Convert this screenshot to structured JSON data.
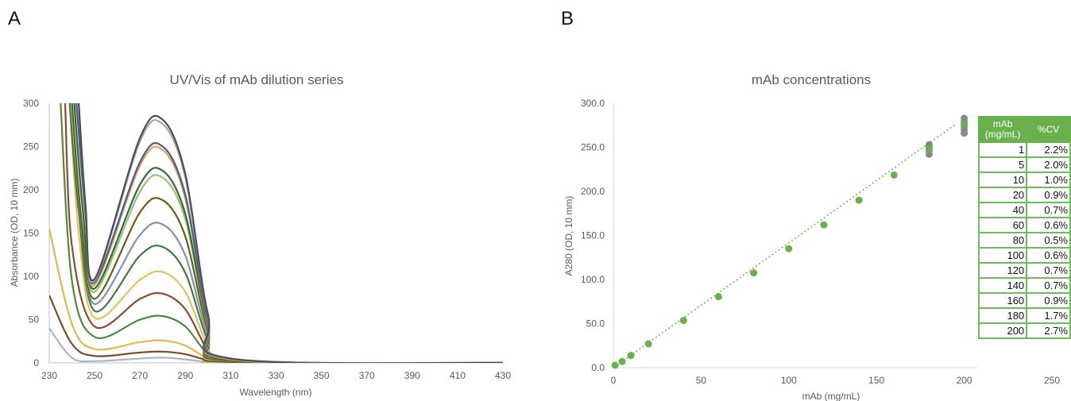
{
  "panels": {
    "a": "A",
    "b": "B"
  },
  "chart_data": [
    {
      "type": "line",
      "title": "UV/Vis of mAb dilution series",
      "xlabel": "Wavelength (nm)",
      "ylabel": "Absorbance (OD, 10 mm)",
      "xlim": [
        230,
        430
      ],
      "ylim": [
        0,
        300
      ],
      "xticks": [
        230,
        250,
        270,
        290,
        310,
        330,
        350,
        370,
        390,
        410,
        430
      ],
      "yticks": [
        0,
        50,
        100,
        150,
        200,
        250,
        300
      ],
      "grid": false,
      "legend": "none",
      "series": [
        {
          "color": "#a9b7c4",
          "points": [
            [
              230,
              40
            ],
            [
              240,
              6
            ],
            [
              250,
              2
            ],
            [
              270,
              5
            ],
            [
              280,
              6
            ],
            [
              290,
              4
            ],
            [
              300,
              1
            ],
            [
              310,
              0
            ],
            [
              430,
              0
            ]
          ]
        },
        {
          "color": "#7a4a2a",
          "points": [
            [
              230,
              78
            ],
            [
              240,
              22
            ],
            [
              250,
              8
            ],
            [
              270,
              12
            ],
            [
              280,
              13
            ],
            [
              290,
              10
            ],
            [
              300,
              3
            ],
            [
              310,
              0
            ],
            [
              430,
              0
            ]
          ]
        },
        {
          "color": "#e0b84a",
          "points": [
            [
              230,
              155
            ],
            [
              240,
              45
            ],
            [
              250,
              16
            ],
            [
              270,
              24
            ],
            [
              280,
              26
            ],
            [
              290,
              20
            ],
            [
              300,
              5
            ],
            [
              310,
              0
            ],
            [
              430,
              0
            ]
          ]
        },
        {
          "color": "#4c8a3c",
          "points": [
            [
              235,
              300
            ],
            [
              240,
              95
            ],
            [
              250,
              30
            ],
            [
              270,
              50
            ],
            [
              280,
              54
            ],
            [
              290,
              42
            ],
            [
              300,
              10
            ],
            [
              310,
              1
            ],
            [
              430,
              0
            ]
          ]
        },
        {
          "color": "#8c4a30",
          "points": [
            [
              237,
              300
            ],
            [
              240,
              135
            ],
            [
              250,
              42
            ],
            [
              270,
              74
            ],
            [
              280,
              80
            ],
            [
              290,
              62
            ],
            [
              300,
              15
            ],
            [
              310,
              1
            ],
            [
              430,
              0
            ]
          ]
        },
        {
          "color": "#e0c060",
          "points": [
            [
              239,
              300
            ],
            [
              243,
              150
            ],
            [
              250,
              52
            ],
            [
              270,
              96
            ],
            [
              280,
              105
            ],
            [
              290,
              82
            ],
            [
              300,
              20
            ],
            [
              310,
              2
            ],
            [
              430,
              0
            ]
          ]
        },
        {
          "color": "#3f7a40",
          "points": [
            [
              239,
              300
            ],
            [
              243,
              175
            ],
            [
              250,
              60
            ],
            [
              270,
              124
            ],
            [
              280,
              134
            ],
            [
              290,
              104
            ],
            [
              300,
              26
            ],
            [
              310,
              2
            ],
            [
              430,
              0
            ]
          ]
        },
        {
          "color": "#8090b0",
          "points": [
            [
              240,
              300
            ],
            [
              244,
              165
            ],
            [
              250,
              68
            ],
            [
              270,
              148
            ],
            [
              280,
              160
            ],
            [
              290,
              124
            ],
            [
              300,
              31
            ],
            [
              310,
              3
            ],
            [
              430,
              0
            ]
          ]
        },
        {
          "color": "#6a5a1a",
          "points": [
            [
              240,
              300
            ],
            [
              244,
              170
            ],
            [
              250,
              74
            ],
            [
              270,
              174
            ],
            [
              280,
              188
            ],
            [
              290,
              146
            ],
            [
              300,
              37
            ],
            [
              310,
              3
            ],
            [
              430,
              0
            ]
          ]
        },
        {
          "color": "#98c070",
          "points": [
            [
              241,
              300
            ],
            [
              245,
              170
            ],
            [
              250,
              82
            ],
            [
              270,
              198
            ],
            [
              280,
              214
            ],
            [
              290,
              166
            ],
            [
              300,
              42
            ],
            [
              310,
              4
            ],
            [
              430,
              0
            ]
          ]
        },
        {
          "color": "#2f6a3a",
          "points": [
            [
              241,
              300
            ],
            [
              245,
              172
            ],
            [
              250,
              86
            ],
            [
              270,
              206
            ],
            [
              280,
              222
            ],
            [
              290,
              172
            ],
            [
              300,
              44
            ],
            [
              310,
              4
            ],
            [
              430,
              0
            ]
          ]
        },
        {
          "color": "#e0a050",
          "points": [
            [
              242,
              300
            ],
            [
              246,
              170
            ],
            [
              250,
              90
            ],
            [
              270,
              228
            ],
            [
              280,
              246
            ],
            [
              290,
              190
            ],
            [
              300,
              48
            ],
            [
              310,
              4
            ],
            [
              430,
              0
            ]
          ]
        },
        {
          "color": "#4a5a8a",
          "points": [
            [
              242,
              300
            ],
            [
              246,
              172
            ],
            [
              250,
              93
            ],
            [
              270,
              232
            ],
            [
              280,
              250
            ],
            [
              290,
              194
            ],
            [
              300,
              50
            ],
            [
              310,
              5
            ],
            [
              430,
              0
            ]
          ]
        },
        {
          "color": "#9aa8b8",
          "points": [
            [
              243,
              300
            ],
            [
              246,
              180
            ],
            [
              250,
              95
            ],
            [
              270,
              256
            ],
            [
              280,
              276
            ],
            [
              290,
              214
            ],
            [
              300,
              55
            ],
            [
              310,
              5
            ],
            [
              430,
              0
            ]
          ]
        },
        {
          "color": "#4a4f55",
          "points": [
            [
              243,
              300
            ],
            [
              246,
              182
            ],
            [
              250,
              97
            ],
            [
              270,
              260
            ],
            [
              280,
              281
            ],
            [
              290,
              218
            ],
            [
              300,
              56
            ],
            [
              310,
              5
            ],
            [
              430,
              0
            ]
          ]
        }
      ]
    },
    {
      "type": "scatter",
      "title": "mAb concentrations",
      "xlabel": "mAb (mg/mL)",
      "ylabel": "A280 (OD, 10 mm)",
      "xlim": [
        0,
        250
      ],
      "ylim": [
        0,
        300
      ],
      "xticks": [
        0,
        50,
        100,
        150,
        200,
        250
      ],
      "yticks": [
        "0.0",
        "50.0",
        "100.0",
        "150.0",
        "200.0",
        "250.0",
        "300.0"
      ],
      "grid": false,
      "trendline": {
        "style": "dotted",
        "color": "#6ab04c",
        "x": [
          0,
          195
        ],
        "y": [
          0,
          276
        ]
      },
      "series": [
        {
          "color": "#6ab04c",
          "x": [
            1,
            5,
            10,
            20,
            40,
            60,
            80,
            100,
            120,
            140,
            160,
            180,
            200
          ],
          "y": [
            2.7,
            7.0,
            13.8,
            27.0,
            53.5,
            80.5,
            107.5,
            135.0,
            162.0,
            190.0,
            218.5,
            248.0,
            276.0
          ]
        },
        {
          "color": "#888888",
          "x": [
            180,
            180,
            180,
            180,
            200,
            200,
            200,
            200,
            200
          ],
          "y": [
            242,
            246,
            250,
            253,
            266,
            270,
            274,
            279,
            283
          ]
        }
      ]
    }
  ],
  "cv_table": {
    "headers": [
      "mAb (mg/mL)",
      "%CV"
    ],
    "rows": [
      [
        "1",
        "2.2%"
      ],
      [
        "5",
        "2.0%"
      ],
      [
        "10",
        "1.0%"
      ],
      [
        "20",
        "0.9%"
      ],
      [
        "40",
        "0.7%"
      ],
      [
        "60",
        "0.6%"
      ],
      [
        "80",
        "0.5%"
      ],
      [
        "100",
        "0.6%"
      ],
      [
        "120",
        "0.7%"
      ],
      [
        "140",
        "0.7%"
      ],
      [
        "160",
        "0.9%"
      ],
      [
        "180",
        "1.7%"
      ],
      [
        "200",
        "2.7%"
      ]
    ]
  }
}
